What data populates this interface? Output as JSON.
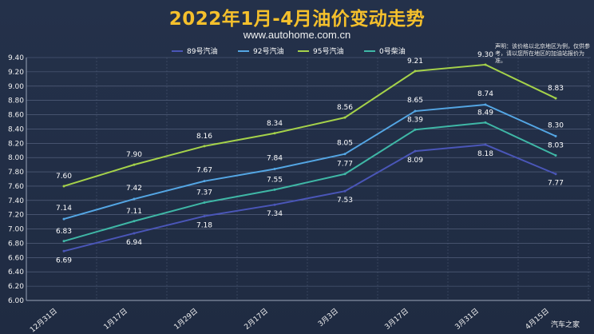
{
  "page": {
    "title": "2022年1月-4月油价变动走势",
    "subtitle": "www.autohome.com.cn",
    "note": "声明：该价格以北京地区为例，仅供参考，请以您所在地区的加油站报价为准。",
    "watermark": "汽车之家"
  },
  "chart_data": {
    "type": "line",
    "title": "2022年1月-4月油价变动走势",
    "xlabel": "",
    "ylabel": "",
    "categories": [
      "12月31日",
      "1月17日",
      "1月29日",
      "2月17日",
      "3月3日",
      "3月17日",
      "3月31日",
      "4月15日"
    ],
    "ylim": [
      6.0,
      9.4
    ],
    "yticks": [
      "6.00",
      "6.20",
      "6.40",
      "6.60",
      "6.80",
      "7.00",
      "7.20",
      "7.40",
      "7.60",
      "7.80",
      "8.00",
      "8.20",
      "8.40",
      "8.60",
      "8.80",
      "9.00",
      "9.20",
      "9.40"
    ],
    "grid": true,
    "legend_position": "top",
    "series": [
      {
        "name": "89号汽油",
        "color": "#4a56b8",
        "values": [
          6.69,
          6.94,
          7.18,
          7.34,
          7.53,
          8.09,
          8.18,
          7.77
        ],
        "labels": [
          "6.69",
          "6.94",
          "7.18",
          "7.34",
          "7.53",
          "8.09",
          "8.18",
          "7.77"
        ]
      },
      {
        "name": "92号汽油",
        "color": "#54a6e4",
        "values": [
          7.14,
          7.42,
          7.67,
          7.84,
          8.05,
          8.65,
          8.74,
          8.3
        ],
        "labels": [
          "7.14",
          "7.42",
          "7.67",
          "7.84",
          "8.05",
          "8.65",
          "8.74",
          "8.30"
        ]
      },
      {
        "name": "95号汽油",
        "color": "#a5d24a",
        "values": [
          7.6,
          7.9,
          8.16,
          8.34,
          8.56,
          9.21,
          9.3,
          8.83
        ],
        "labels": [
          "7.60",
          "7.90",
          "8.16",
          "8.34",
          "8.56",
          "9.21",
          "9.30",
          "8.83"
        ]
      },
      {
        "name": "0号柴油",
        "color": "#3fb7a6",
        "values": [
          6.83,
          7.11,
          7.37,
          7.55,
          7.77,
          8.39,
          8.49,
          8.03
        ],
        "labels": [
          "6.83",
          "7.11",
          "7.37",
          "7.55",
          "7.77",
          "8.39",
          "8.49",
          "8.03"
        ]
      }
    ]
  }
}
